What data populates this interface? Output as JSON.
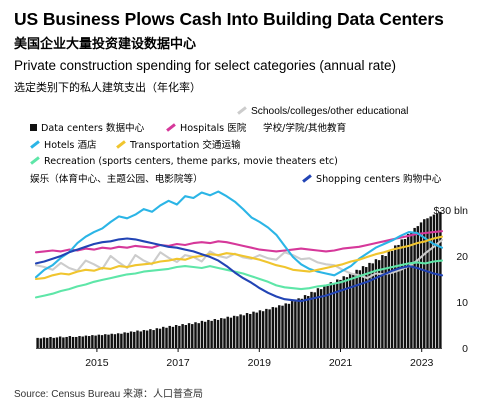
{
  "header": {
    "title": "US Business Plows Cash Into Building Data Centers",
    "title_cn": "美国企业大量投资建设数据中心",
    "subtitle": "Private construction spending for select categories (annual rate)",
    "subtitle_cn": "选定类别下的私人建筑支出（年化率）"
  },
  "legend": {
    "schools": "Schools/colleges/other educational",
    "data_centers": "Data centers 数据中心",
    "hospitals": "Hospitals 医院",
    "schools_cn": "学校/学院/其他教育",
    "hotels": "Hotels 酒店",
    "transportation": "Transportation 交通运输",
    "recreation": "Recreation (sports centers, theme parks, movie theaters etc)",
    "recreation_cn": "娱乐（体育中心、主题公园、电影院等）",
    "shopping": "Shopping centers 购物中心"
  },
  "source": "Source: Census Bureau 来源：人口普查局",
  "chart_data": {
    "type": "line",
    "units": "$ bln",
    "x_range": [
      "2014-01",
      "2023-12"
    ],
    "x_ticks": [
      "2015",
      "2017",
      "2019",
      "2021",
      "2023"
    ],
    "y_range": [
      0,
      30
    ],
    "y_ticks": [
      {
        "value": 0,
        "label": "0"
      },
      {
        "value": 10,
        "label": "10"
      },
      {
        "value": 20,
        "label": "20"
      },
      {
        "value": 30,
        "label": "$30 bln"
      }
    ],
    "grid": false,
    "colors": {
      "data_centers": "#111111",
      "schools": "#cccccc",
      "hospitals": "#d6389a",
      "hotels": "#2bb5e6",
      "transportation": "#f0c52e",
      "recreation": "#5ee6a8",
      "shopping": "#2244b5"
    },
    "bars": {
      "name": "Data centers",
      "values": [
        2.2,
        2.1,
        2.3,
        2.2,
        2.4,
        2.2,
        2.3,
        2.5,
        2.3,
        2.4,
        2.6,
        2.4,
        2.4,
        2.6,
        2.5,
        2.7,
        2.6,
        2.8,
        2.7,
        2.9,
        2.8,
        3.0,
        2.9,
        3.1,
        3.0,
        3.2,
        3.1,
        3.4,
        3.3,
        3.6,
        3.5,
        3.8,
        3.6,
        3.9,
        3.8,
        4.1,
        3.9,
        4.3,
        4.2,
        4.6,
        4.4,
        4.8,
        4.6,
        5.0,
        4.8,
        5.2,
        5.0,
        5.4,
        5.2,
        5.6,
        5.4,
        5.9,
        5.7,
        6.1,
        5.9,
        6.3,
        6.1,
        6.5,
        6.4,
        6.8,
        6.6,
        7.0,
        6.9,
        7.3,
        7.1,
        7.6,
        7.4,
        7.9,
        7.7,
        8.2,
        8.0,
        8.5,
        8.4,
        8.9,
        8.8,
        9.3,
        9.2,
        9.7,
        9.6,
        10.2,
        10.1,
        10.8,
        10.7,
        11.5,
        11.3,
        12.2,
        12.1,
        13.0,
        12.8,
        13.6,
        13.5,
        14.3,
        14.1,
        14.9,
        14.8,
        15.6,
        15.4,
        16.3,
        16.1,
        17.0,
        16.9,
        17.8,
        17.6,
        18.5,
        18.4,
        19.3,
        19.1,
        20.2,
        20.0,
        21.2,
        21.1,
        22.3,
        22.4,
        23.6,
        23.7,
        24.8,
        25.0,
        26.1,
        26.5,
        27.3,
        28.0,
        28.2,
        28.6,
        29.0,
        29.2,
        29.6
      ]
    },
    "series": [
      {
        "name": "Schools/colleges/other educational",
        "key": "schools",
        "values": [
          18.0,
          17.6,
          17.0,
          18.5,
          17.4,
          16.8,
          19.0,
          18.2,
          17.2,
          20.0,
          18.6,
          17.4,
          20.2,
          19.0,
          18.2,
          20.8,
          19.6,
          18.7,
          20.2,
          19.8,
          18.8,
          21.0,
          20.0,
          19.6,
          20.5,
          19.7,
          19.4,
          20.2,
          19.5,
          19.2,
          20.8,
          20.2,
          19.3,
          19.5,
          18.6,
          18.2,
          18.0,
          17.0,
          16.2,
          15.8,
          15.2,
          16.2,
          16.0,
          16.4,
          17.0,
          17.8,
          19.0,
          20.6,
          22.0,
          23.5
        ]
      },
      {
        "name": "Hospitals",
        "key": "hospitals",
        "values": [
          20.8,
          21.0,
          21.2,
          21.0,
          21.4,
          21.2,
          21.6,
          21.4,
          21.8,
          21.6,
          22.0,
          21.8,
          22.2,
          22.0,
          21.8,
          22.4,
          22.2,
          22.6,
          22.4,
          22.8,
          23.0,
          22.8,
          23.2,
          23.0,
          22.6,
          22.2,
          21.8,
          21.4,
          21.2,
          21.0,
          21.2,
          21.4,
          21.6,
          21.4,
          21.2,
          21.0,
          21.2,
          21.6,
          21.8,
          22.0,
          22.4,
          22.8,
          23.2,
          23.6,
          24.0,
          24.4,
          24.8,
          25.0,
          25.2,
          25.4
        ]
      },
      {
        "name": "Hotels",
        "key": "hotels",
        "values": [
          15.4,
          17.0,
          18.0,
          19.6,
          20.8,
          22.8,
          24.2,
          25.2,
          26.0,
          27.4,
          28.6,
          28.2,
          29.0,
          30.2,
          29.6,
          31.0,
          32.0,
          31.2,
          33.0,
          32.6,
          33.8,
          33.2,
          34.0,
          33.0,
          31.8,
          30.2,
          28.4,
          27.4,
          26.2,
          24.6,
          22.2,
          19.8,
          18.2,
          17.2,
          16.6,
          16.2,
          15.8,
          16.8,
          17.8,
          19.4,
          20.6,
          21.8,
          22.6,
          23.4,
          24.4,
          25.2,
          25.0,
          23.8,
          22.6,
          21.8
        ]
      },
      {
        "name": "Transportation",
        "key": "transportation",
        "values": [
          15.0,
          15.2,
          15.8,
          16.2,
          16.0,
          16.6,
          17.0,
          16.8,
          17.4,
          17.2,
          17.8,
          17.6,
          18.0,
          18.2,
          18.4,
          18.8,
          19.0,
          19.4,
          19.2,
          19.8,
          20.0,
          20.4,
          20.2,
          20.6,
          20.4,
          20.0,
          19.6,
          19.2,
          18.6,
          18.0,
          17.6,
          17.0,
          16.8,
          16.6,
          17.0,
          17.4,
          17.8,
          18.2,
          18.8,
          19.2,
          19.8,
          20.4,
          20.8,
          21.4,
          21.8,
          22.2,
          22.8,
          23.2,
          23.8,
          24.2
        ]
      },
      {
        "name": "Recreation (sports centers, theme parks, movie theaters etc)",
        "key": "recreation",
        "values": [
          11.0,
          11.4,
          11.8,
          12.4,
          12.8,
          13.4,
          13.8,
          14.4,
          14.8,
          15.2,
          15.6,
          16.0,
          16.2,
          16.6,
          16.8,
          17.0,
          17.2,
          17.6,
          17.8,
          17.6,
          17.4,
          17.8,
          17.4,
          17.0,
          16.6,
          16.2,
          15.6,
          15.0,
          14.4,
          13.6,
          13.2,
          13.0,
          12.8,
          13.0,
          13.4,
          13.6,
          14.0,
          14.4,
          15.0,
          15.6,
          16.2,
          16.8,
          17.2,
          17.6,
          18.0,
          18.4,
          18.6,
          18.4,
          18.8,
          19.0
        ]
      },
      {
        "name": "Shopping centers",
        "key": "shopping",
        "values": [
          18.4,
          18.8,
          19.4,
          20.0,
          20.8,
          21.4,
          22.0,
          22.6,
          23.0,
          23.2,
          23.6,
          23.8,
          23.6,
          23.2,
          22.8,
          22.4,
          22.0,
          21.8,
          21.4,
          21.0,
          20.4,
          19.8,
          19.0,
          17.8,
          16.4,
          15.2,
          14.2,
          13.0,
          12.0,
          11.2,
          10.6,
          10.4,
          10.2,
          10.6,
          11.0,
          11.4,
          12.0,
          12.6,
          13.2,
          13.8,
          14.4,
          15.2,
          16.0,
          16.8,
          17.4,
          17.8,
          17.4,
          16.8,
          16.2,
          15.8
        ]
      }
    ]
  }
}
